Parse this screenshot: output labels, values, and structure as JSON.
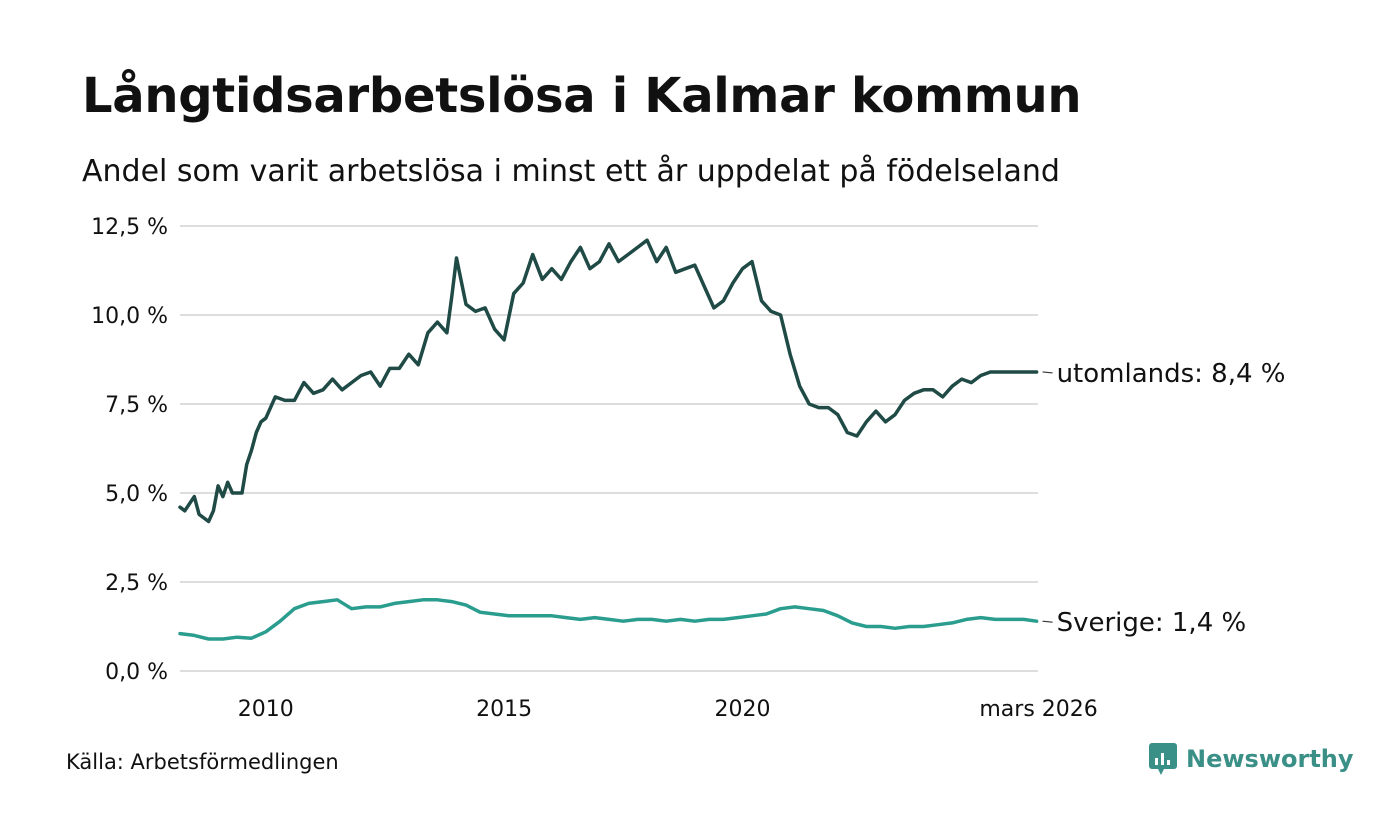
{
  "header": {
    "title": "Långtidsarbetslösa i Kalmar kommun",
    "subtitle": "Andel som varit arbetslösa i minst ett år uppdelat på födelseland"
  },
  "footer": {
    "source": "Källa: Arbetsförmedlingen",
    "brand": "Newsworthy"
  },
  "colors": {
    "utomlands": "#1f4a45",
    "sverige": "#2a9d8f",
    "grid": "#dddddd",
    "brand": "#3a8f86"
  },
  "chart_data": {
    "type": "line",
    "title": "Långtidsarbetslösa i Kalmar kommun",
    "subtitle": "Andel som varit arbetslösa i minst ett år uppdelat på födelseland",
    "xlabel": "",
    "ylabel": "",
    "xlim": [
      2008.2,
      2026.2
    ],
    "ylim": [
      0,
      12.5
    ],
    "y_ticks": [
      {
        "value": 0,
        "label": "0,0 %"
      },
      {
        "value": 2.5,
        "label": "2,5 %"
      },
      {
        "value": 5,
        "label": "5,0 %"
      },
      {
        "value": 7.5,
        "label": "7,5 %"
      },
      {
        "value": 10,
        "label": "10,0 %"
      },
      {
        "value": 12.5,
        "label": "12,5 %"
      }
    ],
    "x_ticks": [
      {
        "value": 2010,
        "label": "2010"
      },
      {
        "value": 2015,
        "label": "2015"
      },
      {
        "value": 2020,
        "label": "2020"
      },
      {
        "value": 2026.17,
        "label": "mars 2026"
      }
    ],
    "grid": true,
    "series": [
      {
        "name": "utomlands",
        "label": "utomlands: 8,4 %",
        "x": [
          2008.2,
          2008.3,
          2008.4,
          2008.5,
          2008.6,
          2008.7,
          2008.8,
          2008.9,
          2009.0,
          2009.1,
          2009.2,
          2009.3,
          2009.4,
          2009.5,
          2009.6,
          2009.7,
          2009.8,
          2009.9,
          2010.0,
          2010.2,
          2010.4,
          2010.6,
          2010.8,
          2011.0,
          2011.2,
          2011.4,
          2011.6,
          2011.8,
          2012.0,
          2012.2,
          2012.4,
          2012.6,
          2012.8,
          2013.0,
          2013.2,
          2013.4,
          2013.6,
          2013.8,
          2013.9,
          2014.0,
          2014.2,
          2014.4,
          2014.6,
          2014.8,
          2015.0,
          2015.2,
          2015.4,
          2015.6,
          2015.8,
          2016.0,
          2016.2,
          2016.4,
          2016.6,
          2016.8,
          2017.0,
          2017.2,
          2017.4,
          2017.6,
          2017.8,
          2018.0,
          2018.2,
          2018.4,
          2018.6,
          2018.8,
          2019.0,
          2019.2,
          2019.4,
          2019.6,
          2019.8,
          2020.0,
          2020.2,
          2020.4,
          2020.6,
          2020.8,
          2021.0,
          2021.2,
          2021.4,
          2021.6,
          2021.8,
          2022.0,
          2022.2,
          2022.4,
          2022.6,
          2022.8,
          2023.0,
          2023.2,
          2023.4,
          2023.6,
          2023.8,
          2024.0,
          2024.2,
          2024.4,
          2024.6,
          2024.8,
          2025.0,
          2025.2,
          2025.4,
          2025.6,
          2025.8,
          2026.0,
          2026.17
        ],
        "values": [
          4.6,
          4.5,
          4.7,
          4.9,
          4.4,
          4.3,
          4.2,
          4.5,
          5.2,
          4.9,
          5.3,
          5.0,
          5.0,
          5.0,
          5.8,
          6.2,
          6.7,
          7.0,
          7.1,
          7.7,
          7.6,
          7.6,
          8.1,
          7.8,
          7.9,
          8.2,
          7.9,
          8.1,
          8.3,
          8.4,
          8.0,
          8.5,
          8.5,
          8.9,
          8.6,
          9.5,
          9.8,
          9.5,
          10.5,
          11.6,
          10.3,
          10.1,
          10.2,
          9.6,
          9.3,
          10.6,
          10.9,
          11.7,
          11.0,
          11.3,
          11.0,
          11.5,
          11.9,
          11.3,
          11.5,
          12.0,
          11.5,
          11.7,
          11.9,
          12.1,
          11.5,
          11.9,
          11.2,
          11.3,
          11.4,
          10.8,
          10.2,
          10.4,
          10.9,
          11.3,
          11.5,
          10.4,
          10.1,
          10.0,
          8.9,
          8.0,
          7.5,
          7.4,
          7.4,
          7.2,
          6.7,
          6.6,
          7.0,
          7.3,
          7.0,
          7.2,
          7.6,
          7.8,
          7.9,
          7.9,
          7.7,
          8.0,
          8.2,
          8.1,
          8.3,
          8.4,
          8.4,
          8.4,
          8.4,
          8.4,
          8.4
        ],
        "color": "#1f4a45"
      },
      {
        "name": "Sverige",
        "label": "Sverige: 1,4 %",
        "x": [
          2008.2,
          2008.5,
          2008.8,
          2009.1,
          2009.4,
          2009.7,
          2010.0,
          2010.3,
          2010.6,
          2010.9,
          2011.2,
          2011.5,
          2011.8,
          2012.1,
          2012.4,
          2012.7,
          2013.0,
          2013.3,
          2013.6,
          2013.9,
          2014.2,
          2014.5,
          2014.8,
          2015.1,
          2015.4,
          2015.7,
          2016.0,
          2016.3,
          2016.6,
          2016.9,
          2017.2,
          2017.5,
          2017.8,
          2018.1,
          2018.4,
          2018.7,
          2019.0,
          2019.3,
          2019.6,
          2019.9,
          2020.2,
          2020.5,
          2020.8,
          2021.1,
          2021.4,
          2021.7,
          2022.0,
          2022.3,
          2022.6,
          2022.9,
          2023.2,
          2023.5,
          2023.8,
          2024.1,
          2024.4,
          2024.7,
          2025.0,
          2025.3,
          2025.6,
          2025.9,
          2026.17
        ],
        "values": [
          1.05,
          1.0,
          0.9,
          0.9,
          0.95,
          0.92,
          1.1,
          1.4,
          1.75,
          1.9,
          1.95,
          2.0,
          1.75,
          1.8,
          1.8,
          1.9,
          1.95,
          2.0,
          2.0,
          1.95,
          1.85,
          1.65,
          1.6,
          1.55,
          1.55,
          1.55,
          1.55,
          1.5,
          1.45,
          1.5,
          1.45,
          1.4,
          1.45,
          1.45,
          1.4,
          1.45,
          1.4,
          1.45,
          1.45,
          1.5,
          1.55,
          1.6,
          1.75,
          1.8,
          1.75,
          1.7,
          1.55,
          1.35,
          1.25,
          1.25,
          1.2,
          1.25,
          1.25,
          1.3,
          1.35,
          1.45,
          1.5,
          1.45,
          1.45,
          1.45,
          1.4
        ],
        "color": "#2a9d8f"
      }
    ]
  }
}
